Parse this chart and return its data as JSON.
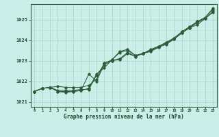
{
  "xlabel": "Graphe pression niveau de la mer (hPa)",
  "bg_color": "#cceee8",
  "grid_color_major": "#aad8cc",
  "grid_color_minor": "#bbddd6",
  "line_color": "#2a5c3a",
  "text_color": "#1a4c2a",
  "xlim": [
    -0.5,
    23.5
  ],
  "ylim": [
    1020.75,
    1025.75
  ],
  "xticks": [
    0,
    1,
    2,
    3,
    4,
    5,
    6,
    7,
    8,
    9,
    10,
    11,
    12,
    13,
    14,
    15,
    16,
    17,
    18,
    19,
    20,
    21,
    22,
    23
  ],
  "yticks": [
    1021,
    1022,
    1023,
    1024,
    1025
  ],
  "lines": [
    [
      1021.5,
      1021.65,
      1021.7,
      1021.75,
      1021.7,
      1021.7,
      1021.7,
      1021.8,
      1022.1,
      1022.9,
      1023.0,
      1023.05,
      1023.35,
      1023.2,
      1023.35,
      1023.45,
      1023.65,
      1023.8,
      1024.05,
      1024.35,
      1024.6,
      1024.75,
      1025.05,
      1025.35
    ],
    [
      1021.5,
      1021.65,
      1021.7,
      1021.55,
      1021.55,
      1021.55,
      1021.6,
      1021.6,
      1022.3,
      1022.8,
      1023.0,
      1023.1,
      1023.4,
      1023.2,
      1023.35,
      1023.5,
      1023.65,
      1023.85,
      1024.05,
      1024.35,
      1024.6,
      1024.85,
      1025.05,
      1025.4
    ],
    [
      1021.5,
      1021.65,
      1021.7,
      1021.5,
      1021.5,
      1021.5,
      1021.55,
      1021.65,
      1022.35,
      1022.65,
      1023.05,
      1023.45,
      1023.55,
      1023.25,
      1023.35,
      1023.5,
      1023.7,
      1023.85,
      1024.1,
      1024.4,
      1024.65,
      1024.9,
      1025.1,
      1025.5
    ],
    [
      1021.5,
      1021.65,
      1021.7,
      1021.5,
      1021.45,
      1021.5,
      1021.55,
      1022.35,
      1022.0,
      1022.85,
      1023.05,
      1023.4,
      1023.5,
      1023.25,
      1023.35,
      1023.55,
      1023.7,
      1023.9,
      1024.1,
      1024.4,
      1024.65,
      1024.9,
      1025.1,
      1025.55
    ]
  ]
}
